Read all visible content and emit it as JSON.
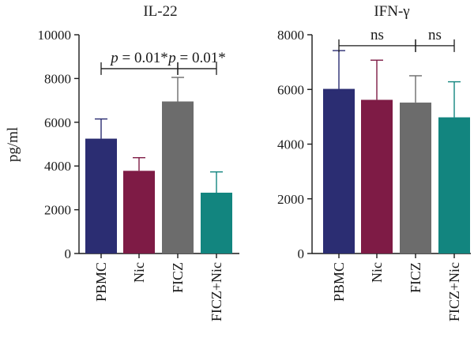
{
  "chart_data": [
    {
      "type": "bar",
      "title": "IL-22",
      "ylabel": "pg/ml",
      "xlabel": "",
      "categories": [
        "PBMC",
        "Nic",
        "FICZ",
        "FICZ+Nic"
      ],
      "values": [
        5250,
        3780,
        6950,
        2780
      ],
      "errors": [
        900,
        600,
        1100,
        950
      ],
      "colors": [
        "#2b2d72",
        "#7e1b45",
        "#6c6c6c",
        "#12857f"
      ],
      "ylim": [
        0,
        10000
      ],
      "yticks": [
        "0",
        "2000",
        "4000",
        "6000",
        "8000",
        "10000"
      ],
      "yticks_values": [
        0,
        2000,
        4000,
        6000,
        8000,
        10000
      ],
      "annotations": [
        {
          "p": "p",
          "rest": " = 0.01*",
          "from": 0,
          "to": 2,
          "y": 8450
        },
        {
          "p": "p",
          "rest": " = 0.01*",
          "from": 2,
          "to": 3,
          "y": 8450
        }
      ],
      "grid": false
    },
    {
      "type": "bar",
      "title": "IFN-γ",
      "ylabel": "",
      "xlabel": "",
      "categories": [
        "PBMC",
        "Nic",
        "FICZ",
        "FICZ+Nic"
      ],
      "values": [
        6020,
        5620,
        5520,
        4980
      ],
      "errors": [
        1400,
        1450,
        980,
        1300
      ],
      "colors": [
        "#2b2d72",
        "#7e1b45",
        "#6c6c6c",
        "#12857f"
      ],
      "ylim": [
        0,
        8000
      ],
      "yticks": [
        "0",
        "2000",
        "4000",
        "6000",
        "8000"
      ],
      "yticks_values": [
        0,
        2000,
        4000,
        6000,
        8000
      ],
      "annotations": [
        {
          "p": "",
          "rest": "ns",
          "from": 0,
          "to": 2,
          "y": 7600
        },
        {
          "p": "",
          "rest": "ns",
          "from": 2,
          "to": 3,
          "y": 7600
        }
      ],
      "grid": false
    }
  ]
}
